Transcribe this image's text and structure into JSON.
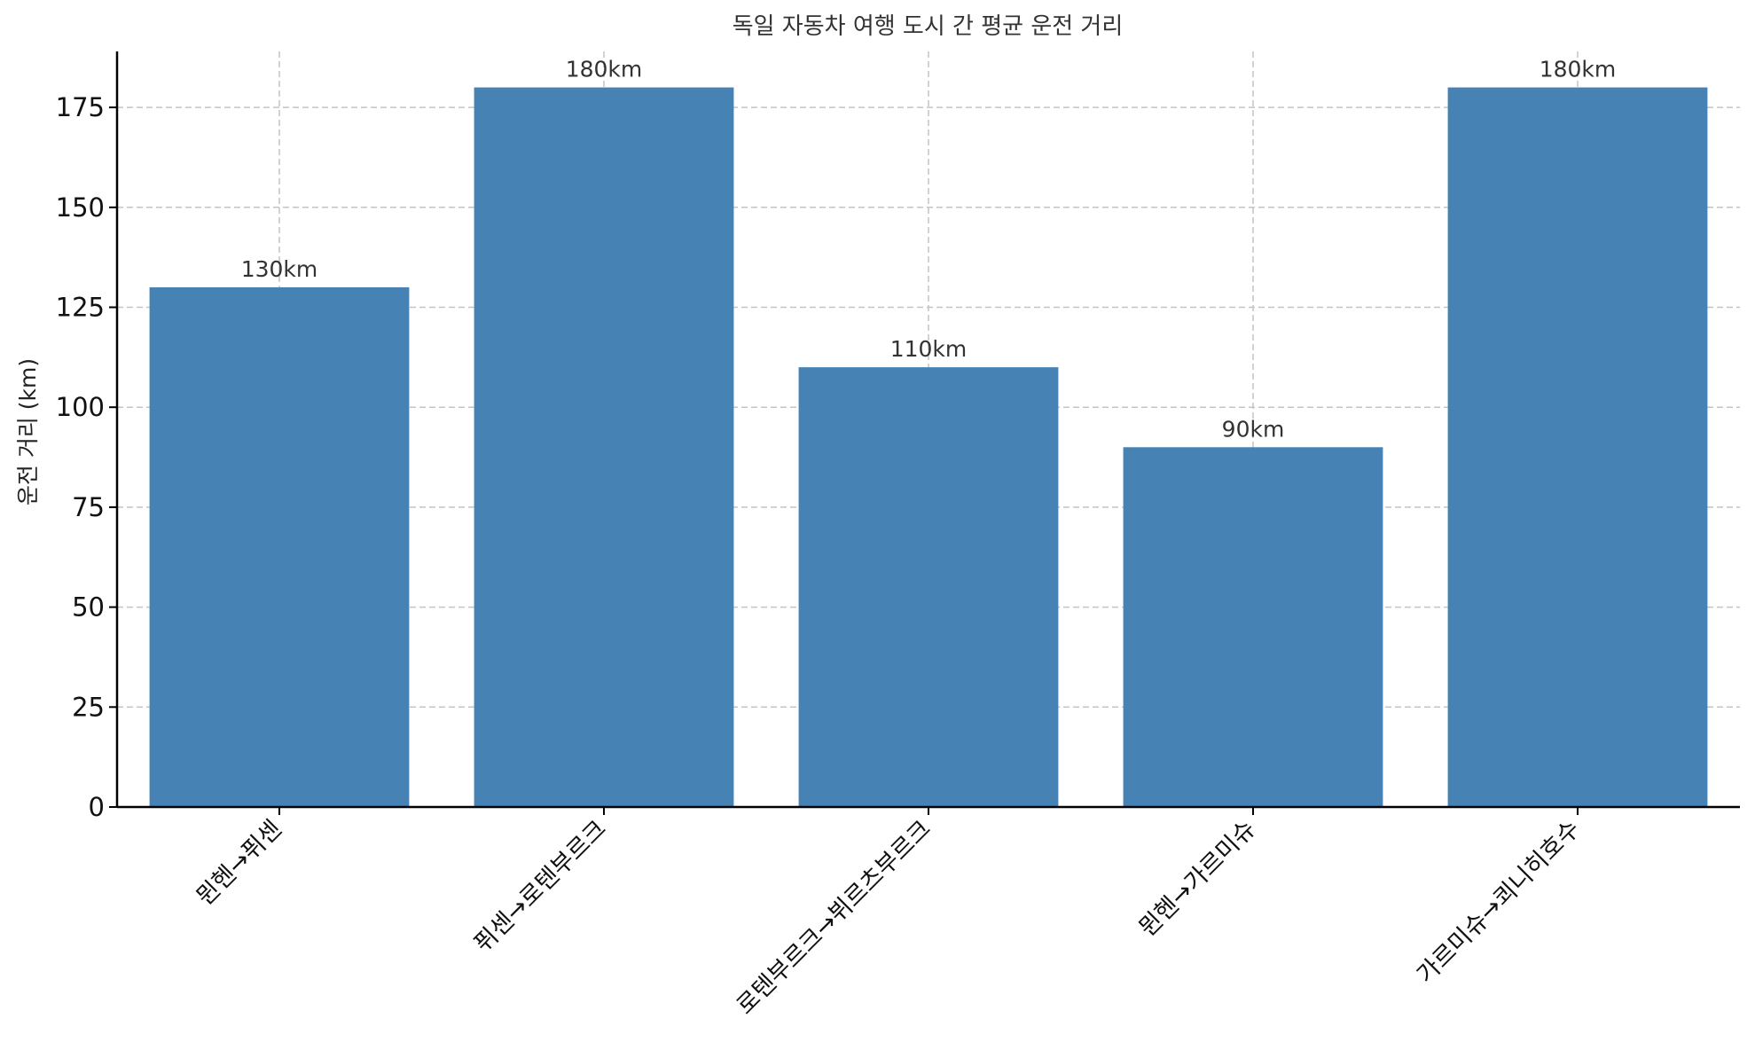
{
  "chart_data": {
    "type": "bar",
    "title": "독일 자동차 여행 도시 간 평균 운전 거리",
    "xlabel": "",
    "ylabel": "운전 거리 (km)",
    "categories": [
      "뮌헨→퓌센",
      "퓌센→로텐부르크",
      "로텐부르크→뷔르츠부르크",
      "뮌헨→가르미슈",
      "가르미슈→쾨니히호수"
    ],
    "values": [
      130,
      180,
      110,
      90,
      180
    ],
    "value_labels": [
      "130km",
      "180km",
      "110km",
      "90km",
      "180km"
    ],
    "ylim": [
      0,
      189
    ],
    "yticks": [
      0,
      25,
      50,
      75,
      100,
      125,
      150,
      175
    ],
    "grid": true,
    "bar_color": "#4682b4",
    "legend": "none"
  }
}
